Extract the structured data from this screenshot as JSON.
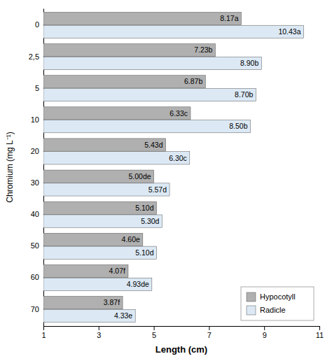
{
  "chart_data": {
    "type": "bar",
    "orientation": "horizontal",
    "categories": [
      "0",
      "2,5",
      "5",
      "10",
      "20",
      "30",
      "40",
      "50",
      "60",
      "70"
    ],
    "series": [
      {
        "name": "Hypocotyll",
        "color": "#b0b0b0",
        "values": [
          8.17,
          7.23,
          6.87,
          6.33,
          5.43,
          5.0,
          5.1,
          4.6,
          4.07,
          3.87
        ],
        "value_labels": [
          "8.17a",
          "7.23b",
          "6.87b",
          "6.33c",
          "5.43d",
          "5.00de",
          "5.10d",
          "4.60e",
          "4.07f",
          "3.87f"
        ]
      },
      {
        "name": "Radicle",
        "color": "#dce9f5",
        "values": [
          10.43,
          8.9,
          8.7,
          8.5,
          6.3,
          5.57,
          5.3,
          5.1,
          4.93,
          4.33
        ],
        "value_labels": [
          "10.43a",
          "8.90b",
          "8.70b",
          "8.50b",
          "6.30c",
          "5.57d",
          "5.30d",
          "5.10d",
          "4.93de",
          "4.33e"
        ]
      }
    ],
    "xlabel": "Length (cm)",
    "ylabel": "Chromium (mg L⁻¹)",
    "xlim": [
      1,
      11
    ],
    "xticks": [
      1,
      3,
      5,
      7,
      9,
      11
    ],
    "data_labels": true,
    "legend": "lower right"
  }
}
